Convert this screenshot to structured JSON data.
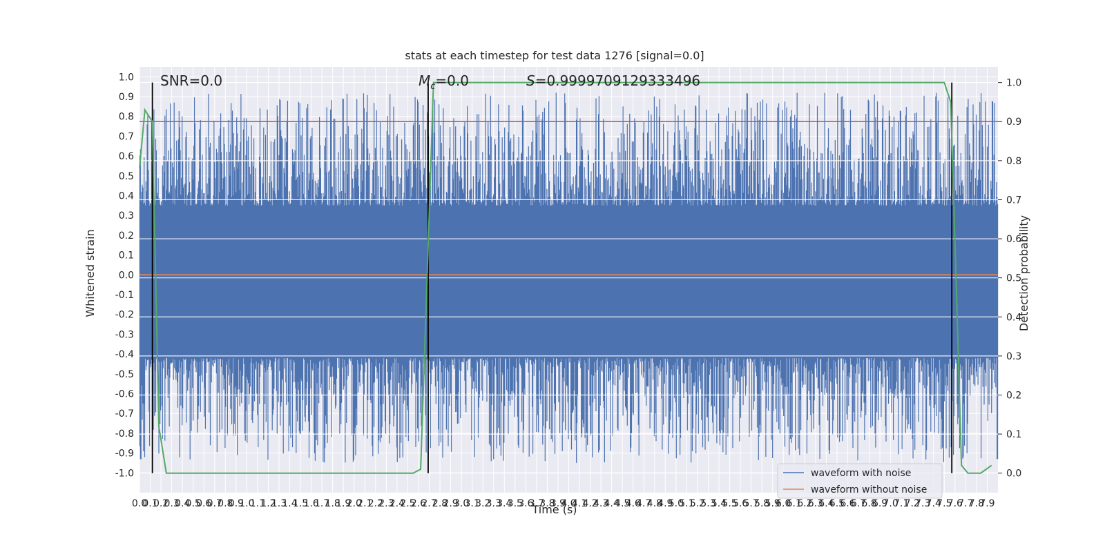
{
  "chart_data": {
    "type": "line",
    "title": "stats at each timestep for test data 1276 [signal=0.0]",
    "xlabel": "Time (s)",
    "ylabel": "Whitened strain",
    "ylabel_right": "Detection probability",
    "xlim": [
      0.0,
      8.0
    ],
    "ylim": [
      -1.1,
      1.05
    ],
    "ylim_right": [
      -0.05,
      1.04
    ],
    "x_ticks": [
      "0.0",
      "0.1",
      "0.2",
      "0.3",
      "0.4",
      "0.5",
      "0.6",
      "0.7",
      "0.8",
      "0.9",
      "1.0",
      "1.1",
      "1.2",
      "1.3",
      "1.4",
      "1.5",
      "1.6",
      "1.7",
      "1.8",
      "1.9",
      "2.0",
      "2.1",
      "2.2",
      "2.3",
      "2.4",
      "2.5",
      "2.6",
      "2.7",
      "2.8",
      "2.9",
      "3.0",
      "3.1",
      "3.2",
      "3.3",
      "3.4",
      "3.5",
      "3.6",
      "3.7",
      "3.8",
      "3.9",
      "4.0",
      "4.1",
      "4.2",
      "4.3",
      "4.4",
      "4.5",
      "4.6",
      "4.7",
      "4.8",
      "4.9",
      "5.0",
      "5.1",
      "5.2",
      "5.3",
      "5.4",
      "5.5",
      "5.6",
      "5.7",
      "5.8",
      "5.9",
      "6.0",
      "6.1",
      "6.2",
      "6.3",
      "6.4",
      "6.5",
      "6.6",
      "6.7",
      "6.8",
      "6.9",
      "7.0",
      "7.1",
      "7.2",
      "7.3",
      "7.4",
      "7.5",
      "7.6",
      "7.7",
      "7.8",
      "7.9"
    ],
    "y_ticks": [
      "1.0",
      "0.9",
      "0.8",
      "0.7",
      "0.6",
      "0.5",
      "0.4",
      "0.3",
      "0.2",
      "0.1",
      "0.0",
      "-0.1",
      "-0.2",
      "-0.3",
      "-0.4",
      "-0.5",
      "-0.6",
      "-0.7",
      "-0.8",
      "-0.9",
      "-1.0"
    ],
    "y_right_ticks": [
      "1.0",
      "0.9",
      "0.8",
      "0.7",
      "0.6",
      "0.5",
      "0.4",
      "0.3",
      "0.2",
      "0.1",
      "0.0"
    ],
    "threshold_right": 0.9,
    "vlines_x": [
      0.12,
      2.69,
      7.57
    ],
    "noisy_waveform": {
      "name": "waveform with noise",
      "color": "#4c72b0",
      "band": [
        -0.42,
        0.35
      ],
      "peak_range": [
        -0.95,
        0.92
      ]
    },
    "clean_waveform": {
      "name": "waveform without noise",
      "color": "#dd8452",
      "value": 0.0
    },
    "probability": {
      "color": "#55a868",
      "x": [
        0.0,
        0.05,
        0.12,
        0.18,
        0.25,
        2.55,
        2.62,
        2.68,
        2.74,
        7.5,
        7.56,
        7.62,
        7.66,
        7.72,
        7.84,
        7.94
      ],
      "y": [
        0.78,
        0.93,
        0.9,
        0.12,
        0.0,
        0.0,
        0.01,
        0.5,
        1.0,
        1.0,
        0.95,
        0.4,
        0.02,
        0.0,
        0.0,
        0.02
      ]
    },
    "annotations": {
      "snr": "SNR=0.0",
      "mc_symbol": "M",
      "mc_sub": "c",
      "mc_value": "=0.0",
      "s": "S=0.9999709129333496"
    },
    "legend": [
      "waveform with noise",
      "waveform without noise"
    ],
    "legend_position": "lower-right",
    "grid": true
  },
  "colors": {
    "axes_bg": "#eaeaf2",
    "grid": "#ffffff",
    "threshold": "#c44e52",
    "vline": "#000000"
  }
}
